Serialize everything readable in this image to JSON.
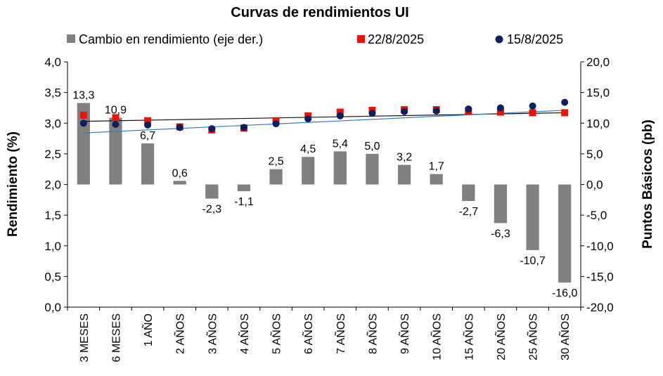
{
  "chart_data": {
    "type": "bar",
    "title": "Curvas de rendimientos UI",
    "categories": [
      "3 MESES",
      "6 MESES",
      "1 AÑO",
      "2 AÑOS",
      "3 AÑOS",
      "4 AÑOS",
      "5 AÑOS",
      "6 AÑOS",
      "7 AÑOS",
      "8 AÑOS",
      "9 AÑOS",
      "10 AÑOS",
      "15 AÑOS",
      "20 AÑOS",
      "25 AÑOS",
      "30 AÑOS"
    ],
    "ylabel": "Rendimiento (%)",
    "y2label": "Puntos Básicos (pb)",
    "ylim": [
      0,
      4
    ],
    "y2lim": [
      -20,
      20
    ],
    "y_ticks": [
      "0,0",
      "0,5",
      "1,0",
      "1,5",
      "2,0",
      "2,5",
      "3,0",
      "3,5",
      "4,0"
    ],
    "y2_ticks": [
      "-20,0",
      "-15,0",
      "-10,0",
      "-5,0",
      "0,0",
      "5,0",
      "10,0",
      "15,0",
      "20,0"
    ],
    "legend_position": "top",
    "series": [
      {
        "name": "Cambio en rendimiento (eje der.)",
        "kind": "bar",
        "axis": "right",
        "color": "#808080",
        "values": [
          13.3,
          10.9,
          6.7,
          0.6,
          -2.3,
          -1.1,
          2.5,
          4.5,
          5.4,
          5.0,
          3.2,
          1.7,
          -2.7,
          -6.3,
          -10.7,
          -16.0
        ],
        "labels": [
          "13,3",
          "10,9",
          "6,7",
          "0,6",
          "-2,3",
          "-1,1",
          "2,5",
          "4,5",
          "5,4",
          "5,0",
          "3,2",
          "1,7",
          "-2,7",
          "-6,3",
          "-10,7",
          "-16,0"
        ]
      },
      {
        "name": "22/8/2025",
        "kind": "scatter",
        "axis": "left",
        "marker": "square",
        "color": "#e8140a",
        "values": [
          3.13,
          3.09,
          3.04,
          2.94,
          2.89,
          2.92,
          3.04,
          3.12,
          3.18,
          3.21,
          3.22,
          3.22,
          3.2,
          3.18,
          3.17,
          3.17
        ]
      },
      {
        "name": "15/8/2025",
        "kind": "scatter",
        "axis": "left",
        "marker": "circle",
        "color": "#0d1f5c",
        "values": [
          3.0,
          2.98,
          2.97,
          2.93,
          2.91,
          2.93,
          2.99,
          3.07,
          3.12,
          3.16,
          3.19,
          3.2,
          3.23,
          3.25,
          3.28,
          3.34
        ]
      }
    ],
    "trendlines": [
      {
        "series": "22/8/2025",
        "color": "#111111",
        "start": 3.03,
        "end": 3.17
      },
      {
        "series": "15/8/2025",
        "color": "#2e7bbf",
        "start": 2.84,
        "end": 3.21
      }
    ]
  }
}
